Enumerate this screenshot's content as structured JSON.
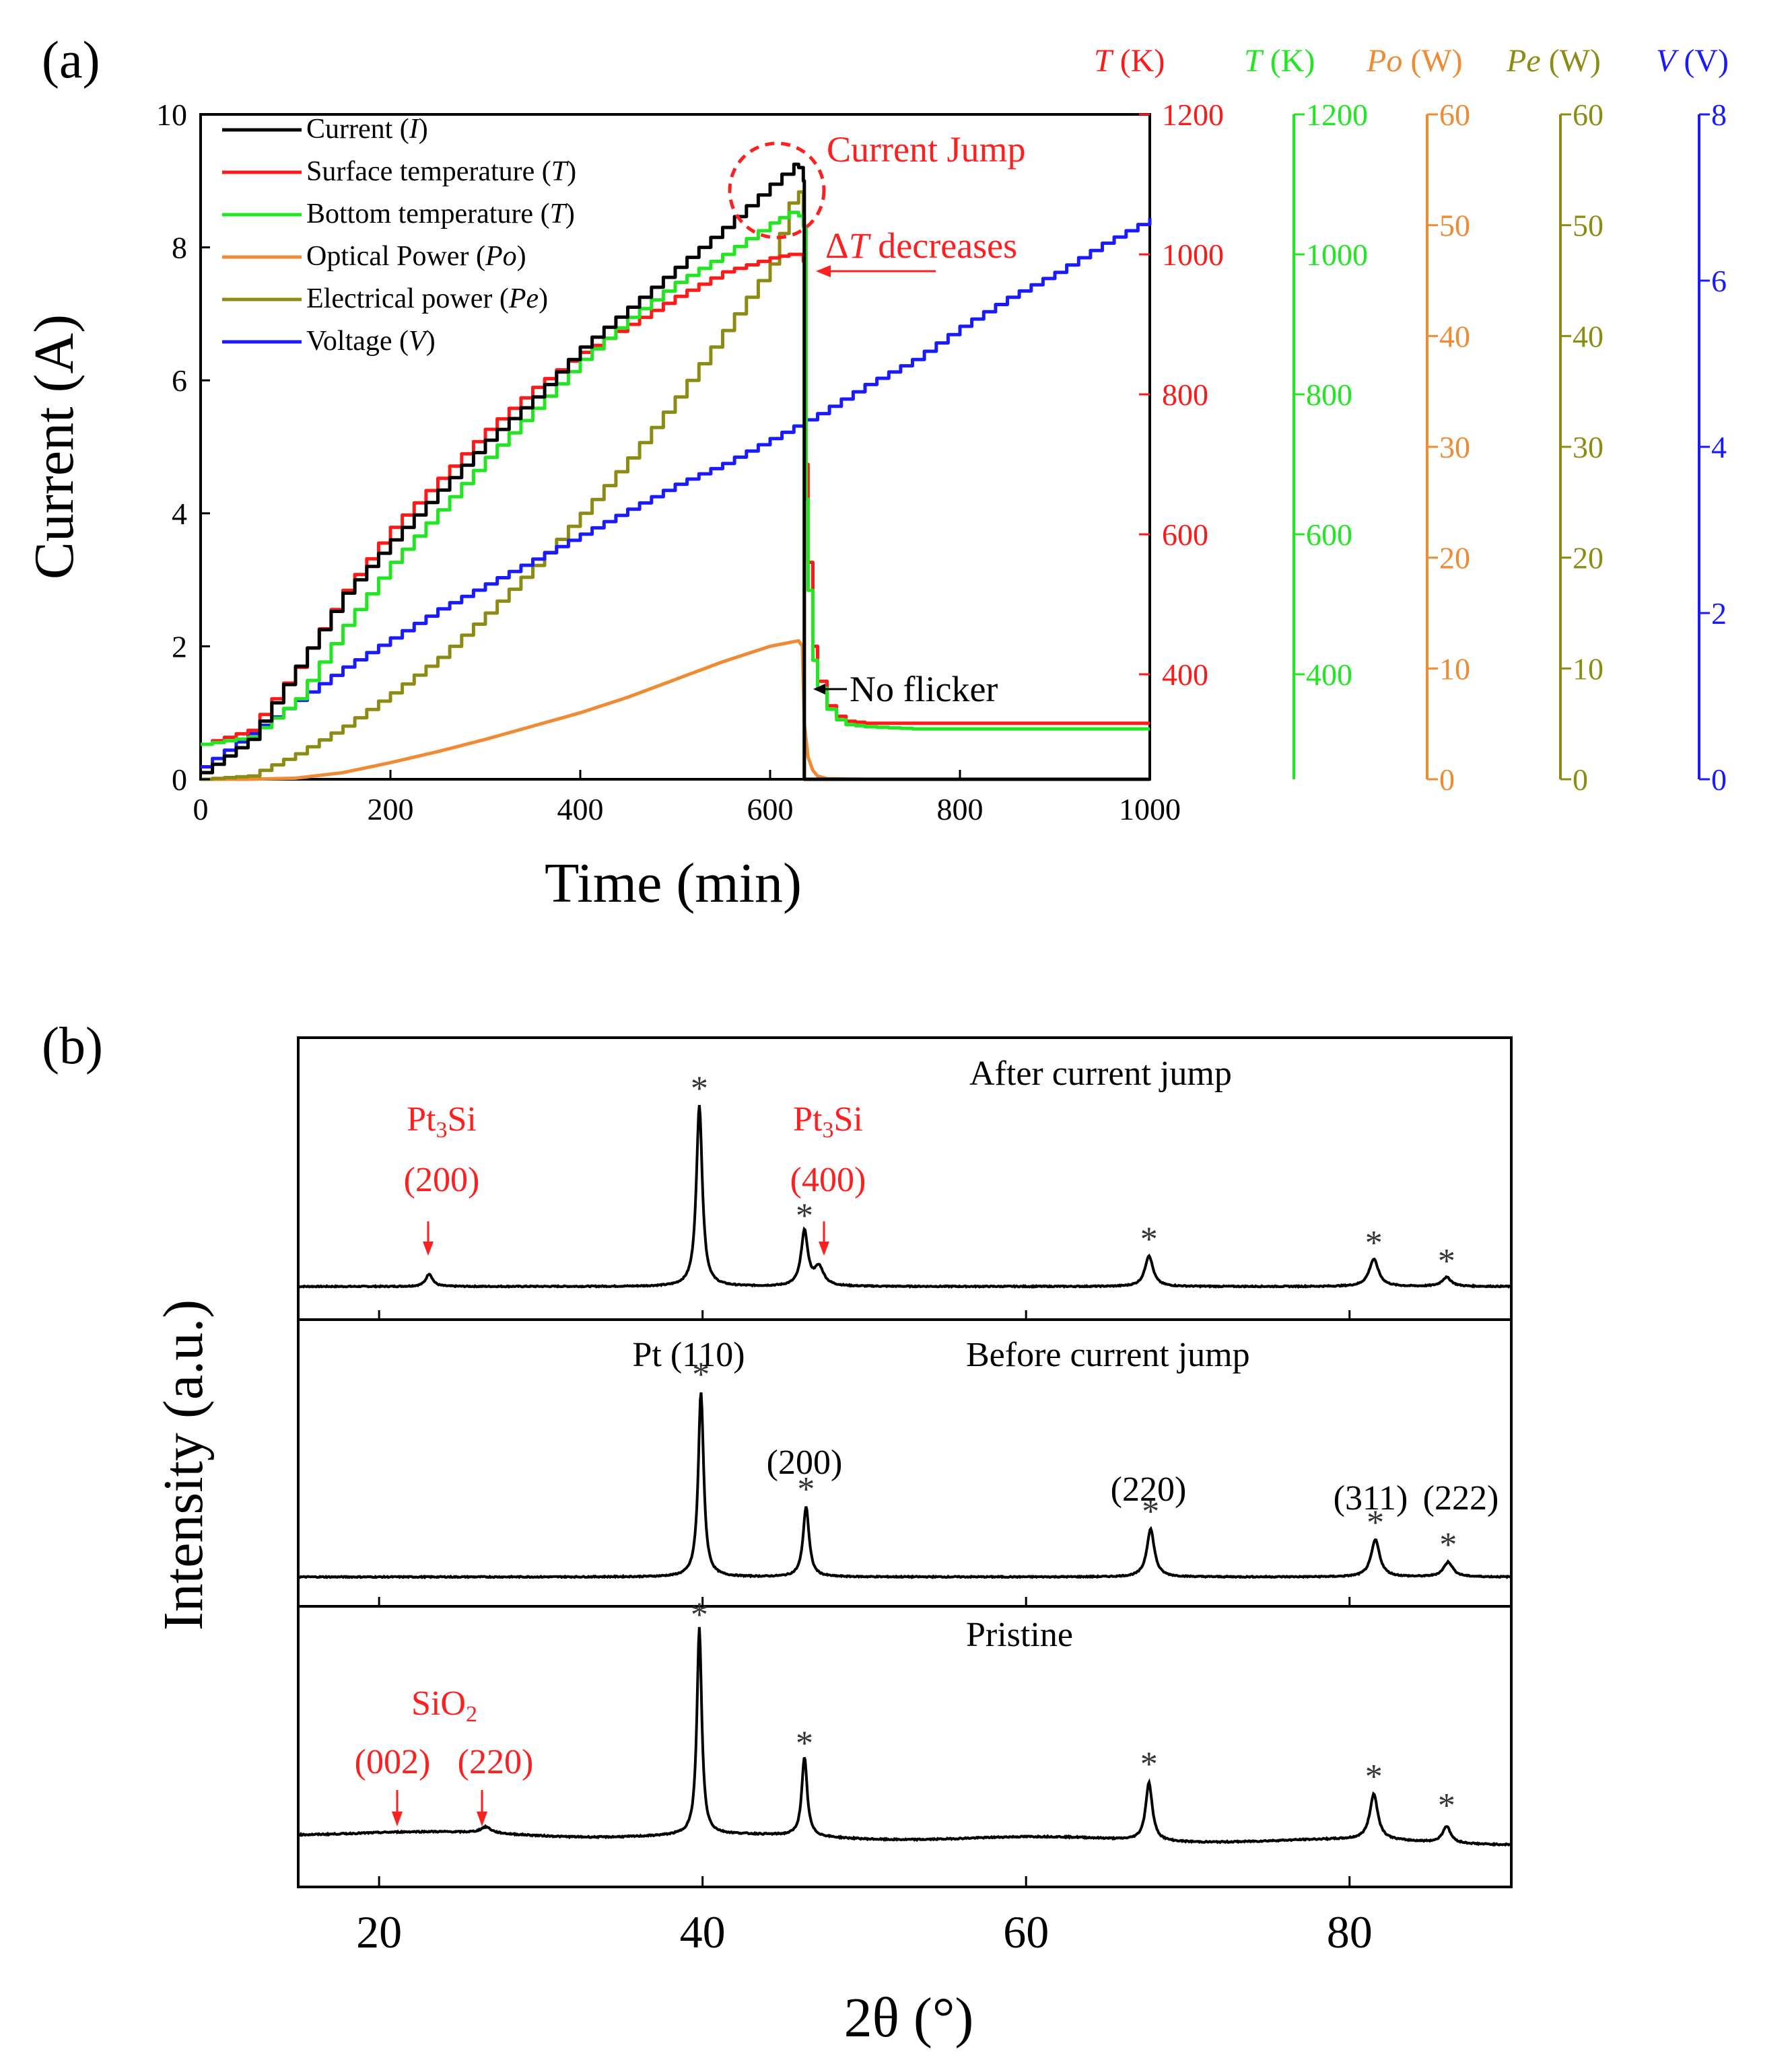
{
  "colors": {
    "current": "#000000",
    "surface": "#ff1a1a",
    "bottom": "#22e622",
    "optical": "#ef8a35",
    "electrical": "#8c8c14",
    "voltage": "#1a1aff",
    "red_text": "#ff1f1f",
    "axis": "#000000"
  },
  "chart_data": [
    {
      "panel_label": "(a)",
      "type": "line",
      "title": "",
      "xlabel": "Time (min)",
      "ylabel": "Current (A)",
      "xlim": [
        0,
        1000
      ],
      "ylim": [
        0,
        10
      ],
      "x_ticks": [
        "0",
        "200",
        "400",
        "600",
        "800",
        "1000"
      ],
      "y_ticks": [
        "0",
        "2",
        "4",
        "6",
        "8",
        "10"
      ],
      "right_axes": [
        {
          "key": "T_surface",
          "label_var": "T",
          "label_unit": " (K)",
          "color": "#ff1a1a",
          "range": [
            250,
            1200
          ],
          "ticks": [
            "400",
            "600",
            "800",
            "1000",
            "1200"
          ],
          "tick_values": [
            400,
            600,
            800,
            1000,
            1200
          ]
        },
        {
          "key": "T_bottom",
          "label_var": "T",
          "label_unit": " (K)",
          "color": "#22e622",
          "range": [
            250,
            1200
          ],
          "ticks": [
            "400",
            "600",
            "800",
            "1000",
            "1200"
          ],
          "tick_values": [
            400,
            600,
            800,
            1000,
            1200
          ]
        },
        {
          "key": "Po",
          "label_var": "Po",
          "label_unit": " (W)",
          "color": "#ef8a35",
          "range": [
            0,
            60
          ],
          "ticks": [
            "0",
            "10",
            "20",
            "30",
            "40",
            "50",
            "60"
          ],
          "tick_values": [
            0,
            10,
            20,
            30,
            40,
            50,
            60
          ]
        },
        {
          "key": "Pe",
          "label_var": "Pe",
          "label_unit": " (W)",
          "color": "#8c8c14",
          "range": [
            0,
            60
          ],
          "ticks": [
            "0",
            "10",
            "20",
            "30",
            "40",
            "50",
            "60"
          ],
          "tick_values": [
            0,
            10,
            20,
            30,
            40,
            50,
            60
          ]
        },
        {
          "key": "V",
          "label_var": "V",
          "label_unit": " (V)",
          "color": "#1a1aff",
          "range": [
            0,
            8
          ],
          "ticks": [
            "0",
            "2",
            "4",
            "6",
            "8"
          ],
          "tick_values": [
            0,
            2,
            4,
            6,
            8
          ]
        }
      ],
      "legend": {
        "placement": "top-left",
        "entries": [
          {
            "label": "Current (",
            "var": "I",
            "end": ")",
            "series": "current"
          },
          {
            "label": "Surface temperature (",
            "var": "T",
            "end": ")",
            "series": "surface"
          },
          {
            "label": "Bottom temperature (",
            "var": "T",
            "end": ")",
            "series": "bottom"
          },
          {
            "label": "Optical Power (",
            "var": "Po",
            "end": ")",
            "series": "optical"
          },
          {
            "label": "Electrical power (",
            "var": "Pe",
            "end": ")",
            "series": "electrical"
          },
          {
            "label": "Voltage (",
            "var": "V",
            "end": ")",
            "series": "voltage"
          }
        ]
      },
      "series": [
        {
          "name": "Current",
          "key": "current",
          "axis": "left",
          "color": "#000000",
          "step": true,
          "x": [
            0,
            50,
            100,
            150,
            200,
            250,
            300,
            350,
            400,
            450,
            500,
            550,
            600,
            625,
            630,
            635,
            636,
            640,
            650,
            660,
            680,
            700,
            750,
            800,
            900,
            1000
          ],
          "y": [
            0.1,
            0.6,
            1.7,
            2.8,
            3.6,
            4.35,
            5.1,
            5.75,
            6.5,
            7.1,
            7.7,
            8.3,
            8.95,
            9.25,
            9.2,
            9.0,
            0.0,
            0.0,
            0.0,
            0.0,
            0.0,
            0.0,
            0.0,
            0.0,
            0.0,
            0.0
          ]
        },
        {
          "name": "Surface temperature",
          "key": "surface",
          "axis": "T_surface",
          "color": "#ff1a1a",
          "step": true,
          "x": [
            0,
            50,
            100,
            150,
            200,
            250,
            300,
            350,
            400,
            450,
            500,
            550,
            600,
            620,
            635,
            638,
            640,
            645,
            650,
            660,
            670,
            680,
            700,
            750,
            800,
            900,
            1000
          ],
          "y": [
            300,
            320,
            410,
            520,
            610,
            680,
            750,
            810,
            860,
            900,
            940,
            975,
            995,
            1000,
            990,
            700,
            560,
            440,
            390,
            355,
            340,
            333,
            330,
            330,
            330,
            330,
            330
          ]
        },
        {
          "name": "Bottom temperature",
          "key": "bottom",
          "axis": "T_bottom",
          "color": "#22e622",
          "step": true,
          "x": [
            0,
            50,
            100,
            150,
            200,
            250,
            300,
            350,
            400,
            450,
            500,
            550,
            600,
            620,
            630,
            635,
            638,
            640,
            645,
            650,
            660,
            670,
            680,
            700,
            750,
            800,
            900,
            1000
          ],
          "y": [
            300,
            310,
            365,
            470,
            560,
            635,
            710,
            780,
            850,
            910,
            960,
            1000,
            1045,
            1060,
            1055,
            1040,
            650,
            520,
            420,
            380,
            350,
            335,
            328,
            325,
            322,
            322,
            322,
            322
          ]
        },
        {
          "name": "Optical Power",
          "key": "optical",
          "axis": "Po",
          "color": "#ef8a35",
          "step": false,
          "x": [
            0,
            50,
            100,
            150,
            200,
            250,
            300,
            350,
            400,
            450,
            500,
            550,
            600,
            630,
            634,
            636,
            640,
            645,
            650,
            660,
            700,
            800,
            1000
          ],
          "y": [
            0,
            0,
            0.1,
            0.6,
            1.5,
            2.5,
            3.6,
            4.8,
            6.0,
            7.4,
            9.0,
            10.6,
            12.0,
            12.5,
            12.0,
            5,
            2.0,
            0.8,
            0.3,
            0.05,
            0,
            0,
            0
          ]
        },
        {
          "name": "Electrical power",
          "key": "electrical",
          "axis": "Pe",
          "color": "#8c8c14",
          "step": true,
          "x": [
            0,
            50,
            100,
            150,
            200,
            250,
            300,
            350,
            400,
            450,
            500,
            550,
            600,
            620,
            630,
            635,
            636,
            640,
            1000
          ],
          "y": [
            0,
            0.3,
            2.3,
            4.8,
            7.8,
            11.0,
            15.0,
            19.3,
            24.0,
            29.0,
            34.5,
            40.5,
            46.5,
            52.0,
            53.0,
            51.0,
            0.0,
            0.0,
            0.0
          ]
        },
        {
          "name": "Voltage",
          "key": "voltage",
          "axis": "V",
          "color": "#1a1aff",
          "step": true,
          "x": [
            0,
            50,
            100,
            150,
            200,
            250,
            300,
            350,
            400,
            450,
            500,
            550,
            600,
            650,
            700,
            750,
            800,
            850,
            900,
            950,
            1000
          ],
          "y": [
            0.15,
            0.55,
            0.95,
            1.35,
            1.7,
            2.05,
            2.35,
            2.65,
            2.95,
            3.25,
            3.55,
            3.8,
            4.1,
            4.4,
            4.75,
            5.05,
            5.45,
            5.8,
            6.1,
            6.45,
            6.75
          ]
        }
      ],
      "annotations": {
        "current_jump": "Current Jump",
        "delta_t_symbol": "Δ",
        "delta_t_var": "T",
        "delta_t_text": " decreases",
        "no_flicker": "No flicker"
      }
    },
    {
      "panel_label": "(b)",
      "type": "line",
      "title": "",
      "xlabel": "2θ (°)",
      "ylabel": "Intensity (a.u.)",
      "xlim": [
        15,
        90
      ],
      "x_ticks": [
        "20",
        "40",
        "60",
        "80"
      ],
      "series": [
        {
          "name": "After current jump",
          "baseline": 0.04,
          "peaks": [
            {
              "x": 23.1,
              "h": 0.07,
              "w": 0.25
            },
            {
              "x": 39.8,
              "h": 1.0,
              "w": 0.22
            },
            {
              "x": 46.3,
              "h": 0.3,
              "w": 0.25
            },
            {
              "x": 47.2,
              "h": 0.1,
              "w": 0.35
            },
            {
              "x": 67.6,
              "h": 0.17,
              "w": 0.3
            },
            {
              "x": 81.5,
              "h": 0.15,
              "w": 0.35
            },
            {
              "x": 86.0,
              "h": 0.05,
              "w": 0.35
            }
          ]
        },
        {
          "name": "Before current jump",
          "baseline": 0.02,
          "peaks": [
            {
              "x": 39.9,
              "h": 1.0,
              "w": 0.2
            },
            {
              "x": 46.4,
              "h": 0.38,
              "w": 0.22
            },
            {
              "x": 67.7,
              "h": 0.26,
              "w": 0.28
            },
            {
              "x": 81.6,
              "h": 0.2,
              "w": 0.32
            },
            {
              "x": 86.1,
              "h": 0.08,
              "w": 0.35
            }
          ]
        },
        {
          "name": "Pristine",
          "baseline": 0.08,
          "peaks": [
            {
              "x": 26.6,
              "h": 0.03,
              "w": 0.4
            },
            {
              "x": 39.8,
              "h": 1.0,
              "w": 0.18
            },
            {
              "x": 46.3,
              "h": 0.38,
              "w": 0.2
            },
            {
              "x": 67.6,
              "h": 0.28,
              "w": 0.25
            },
            {
              "x": 81.5,
              "h": 0.22,
              "w": 0.3
            },
            {
              "x": 86.0,
              "h": 0.08,
              "w": 0.3
            }
          ]
        }
      ],
      "labels": {
        "after": "After current jump",
        "before": "Before current jump",
        "pristine": "Pristine",
        "pt3si": "Pt",
        "pt3si_sub": "3",
        "pt3si_end": "Si",
        "pt3si_200": "(200)",
        "pt3si_400": "(400)",
        "pt110": "Pt (110)",
        "hkl_200": "(200)",
        "hkl_220": "(220)",
        "hkl_311": "(311)",
        "hkl_222": "(222)",
        "sio2": "SiO",
        "sio2_sub": "2",
        "sio2_002": "(002)",
        "sio2_220": "(220)",
        "star": "*"
      }
    }
  ]
}
